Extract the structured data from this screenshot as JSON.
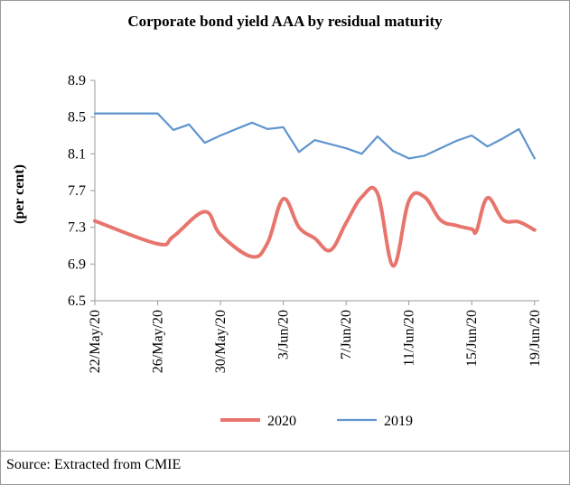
{
  "source": "Source: Extracted from CMIE",
  "chart_data": {
    "type": "line",
    "title": "Corporate bond yield AAA by residual maturity",
    "xlabel": "",
    "ylabel": "(per cent)",
    "ylim": [
      6.5,
      8.9
    ],
    "yticks": [
      "8.9",
      "8.5",
      "8.1",
      "7.7",
      "7.3",
      "6.9",
      "6.5"
    ],
    "x_tick_labels": [
      "22/May/20",
      "26/May/20",
      "30/May/20",
      "3/Jun/20",
      "7/Jun/20",
      "11/Jun/20",
      "15/Jun/20",
      "19/Jun/20"
    ],
    "x_tick_positions": [
      0,
      4,
      8,
      12,
      16,
      20,
      24,
      28
    ],
    "x_range": [
      0,
      28.3
    ],
    "legend_position": "bottom",
    "series": [
      {
        "name": "2020",
        "color": "#e8756d",
        "x": [
          0,
          4,
          5,
          7,
          8,
          10,
          11,
          12,
          13,
          14,
          15,
          16,
          17,
          18,
          19,
          20,
          21,
          22,
          23,
          24,
          24.3,
          25,
          26,
          27,
          28
        ],
        "values": [
          7.37,
          7.12,
          7.2,
          7.47,
          7.22,
          6.98,
          7.13,
          7.61,
          7.3,
          7.18,
          7.05,
          7.35,
          7.63,
          7.67,
          6.88,
          7.59,
          7.63,
          7.38,
          7.32,
          7.28,
          7.26,
          7.62,
          7.38,
          7.36,
          7.27
        ]
      },
      {
        "name": "2019",
        "color": "#5f94ce",
        "x": [
          0,
          4,
          5,
          6,
          7,
          8,
          10,
          11,
          12,
          13,
          14,
          16,
          17,
          18,
          19,
          20,
          21,
          22,
          23,
          24,
          25,
          26,
          27,
          28
        ],
        "values": [
          8.54,
          8.54,
          8.36,
          8.42,
          8.22,
          8.3,
          8.44,
          8.37,
          8.39,
          8.12,
          8.25,
          8.16,
          8.1,
          8.29,
          8.13,
          8.05,
          8.08,
          8.16,
          8.24,
          8.3,
          8.18,
          8.27,
          8.37,
          8.05
        ]
      }
    ]
  }
}
